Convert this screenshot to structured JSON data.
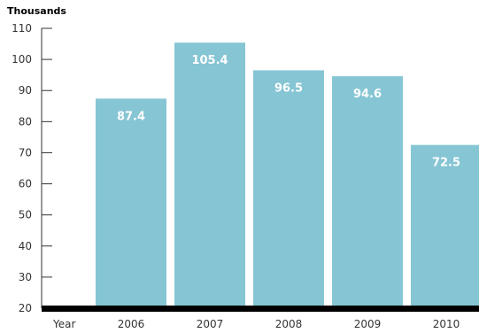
{
  "chart_data": {
    "type": "bar",
    "ylabel": "Thousands",
    "xlabel": "Year",
    "categories": [
      "2006",
      "2007",
      "2008",
      "2009",
      "2010"
    ],
    "values": [
      87.4,
      105.4,
      96.5,
      94.6,
      72.5
    ],
    "value_labels": [
      "87.4",
      "105.4",
      "96.5",
      "94.6",
      "72.5"
    ],
    "ylim": [
      20,
      110
    ],
    "yticks": [
      "20",
      "30",
      "40",
      "50",
      "60",
      "70",
      "80",
      "90",
      "100",
      "110"
    ],
    "grid": false,
    "legend": "none",
    "colors": {
      "bar": "#86c5d4",
      "baseline": "#000000",
      "axis": "#333333",
      "label": "#ffffff"
    }
  }
}
